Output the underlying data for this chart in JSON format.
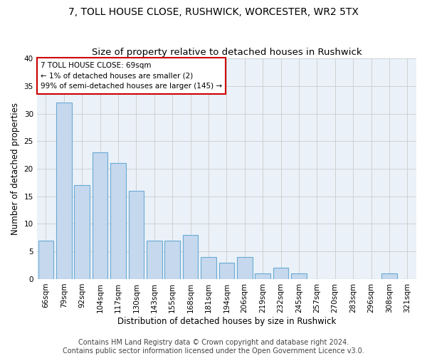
{
  "title": "7, TOLL HOUSE CLOSE, RUSHWICK, WORCESTER, WR2 5TX",
  "subtitle": "Size of property relative to detached houses in Rushwick",
  "xlabel": "Distribution of detached houses by size in Rushwick",
  "ylabel": "Number of detached properties",
  "categories": [
    "66sqm",
    "79sqm",
    "92sqm",
    "104sqm",
    "117sqm",
    "130sqm",
    "143sqm",
    "155sqm",
    "168sqm",
    "181sqm",
    "194sqm",
    "206sqm",
    "219sqm",
    "232sqm",
    "245sqm",
    "257sqm",
    "270sqm",
    "283sqm",
    "296sqm",
    "308sqm",
    "321sqm"
  ],
  "values": [
    7,
    32,
    17,
    23,
    21,
    16,
    7,
    7,
    8,
    4,
    3,
    4,
    1,
    2,
    1,
    0,
    0,
    0,
    0,
    1,
    0
  ],
  "bar_color": "#c5d8ed",
  "bar_edge_color": "#6aaad4",
  "bg_color": "#eaf1f8",
  "annotation_box_text": "7 TOLL HOUSE CLOSE: 69sqm\n← 1% of detached houses are smaller (2)\n99% of semi-detached houses are larger (145) →",
  "annotation_box_color": "#ffffff",
  "annotation_box_edge_color": "#cc0000",
  "ylim": [
    0,
    40
  ],
  "yticks": [
    0,
    5,
    10,
    15,
    20,
    25,
    30,
    35,
    40
  ],
  "footer_text": "Contains HM Land Registry data © Crown copyright and database right 2024.\nContains public sector information licensed under the Open Government Licence v3.0.",
  "title_fontsize": 10,
  "subtitle_fontsize": 9.5,
  "xlabel_fontsize": 8.5,
  "ylabel_fontsize": 8.5,
  "tick_fontsize": 7.5,
  "ann_fontsize": 7.5,
  "footer_fontsize": 7,
  "grid_color": "#cccccc"
}
